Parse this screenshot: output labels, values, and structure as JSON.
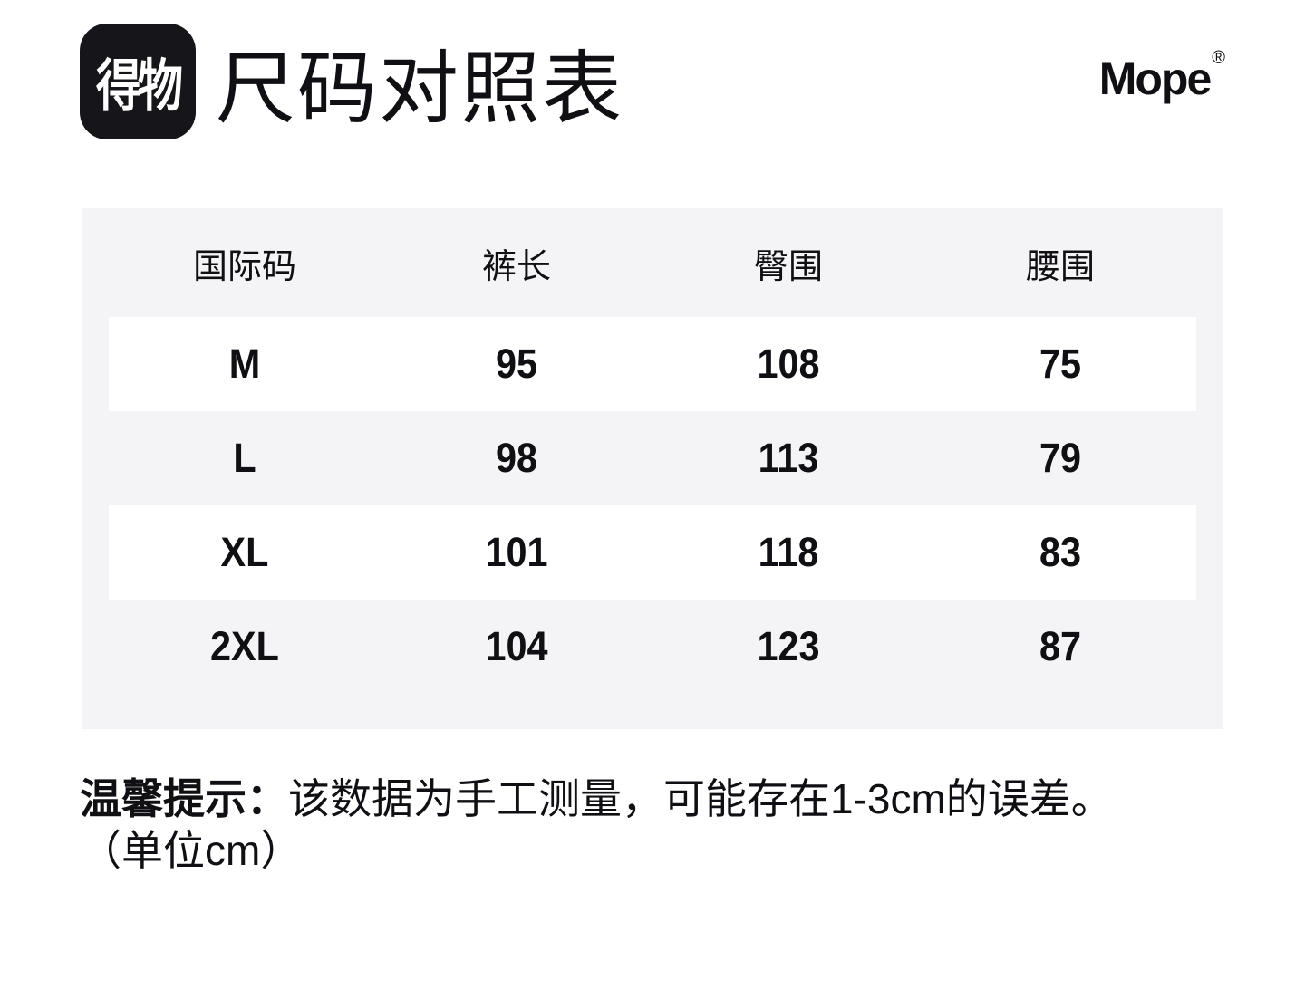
{
  "header": {
    "logo_text": "得物",
    "title": "尺码对照表",
    "brand_name": "Mope",
    "brand_reg_mark": "®"
  },
  "table": {
    "columns": [
      "国际码",
      "裤长",
      "臀围",
      "腰围"
    ],
    "rows": [
      [
        "M",
        "95",
        "108",
        "75"
      ],
      [
        "L",
        "98",
        "113",
        "79"
      ],
      [
        "XL",
        "101",
        "118",
        "83"
      ],
      [
        "2XL",
        "104",
        "123",
        "87"
      ]
    ]
  },
  "note": {
    "prefix": "温馨提示：",
    "text": "该数据为手工测量，可能存在1-3cm的误差。",
    "unit_line": "（单位cm）"
  },
  "colors": {
    "table_background": "#f4f4f7",
    "row_background": "#ffffff",
    "logo_background": "#15151a",
    "text": "#101014"
  }
}
